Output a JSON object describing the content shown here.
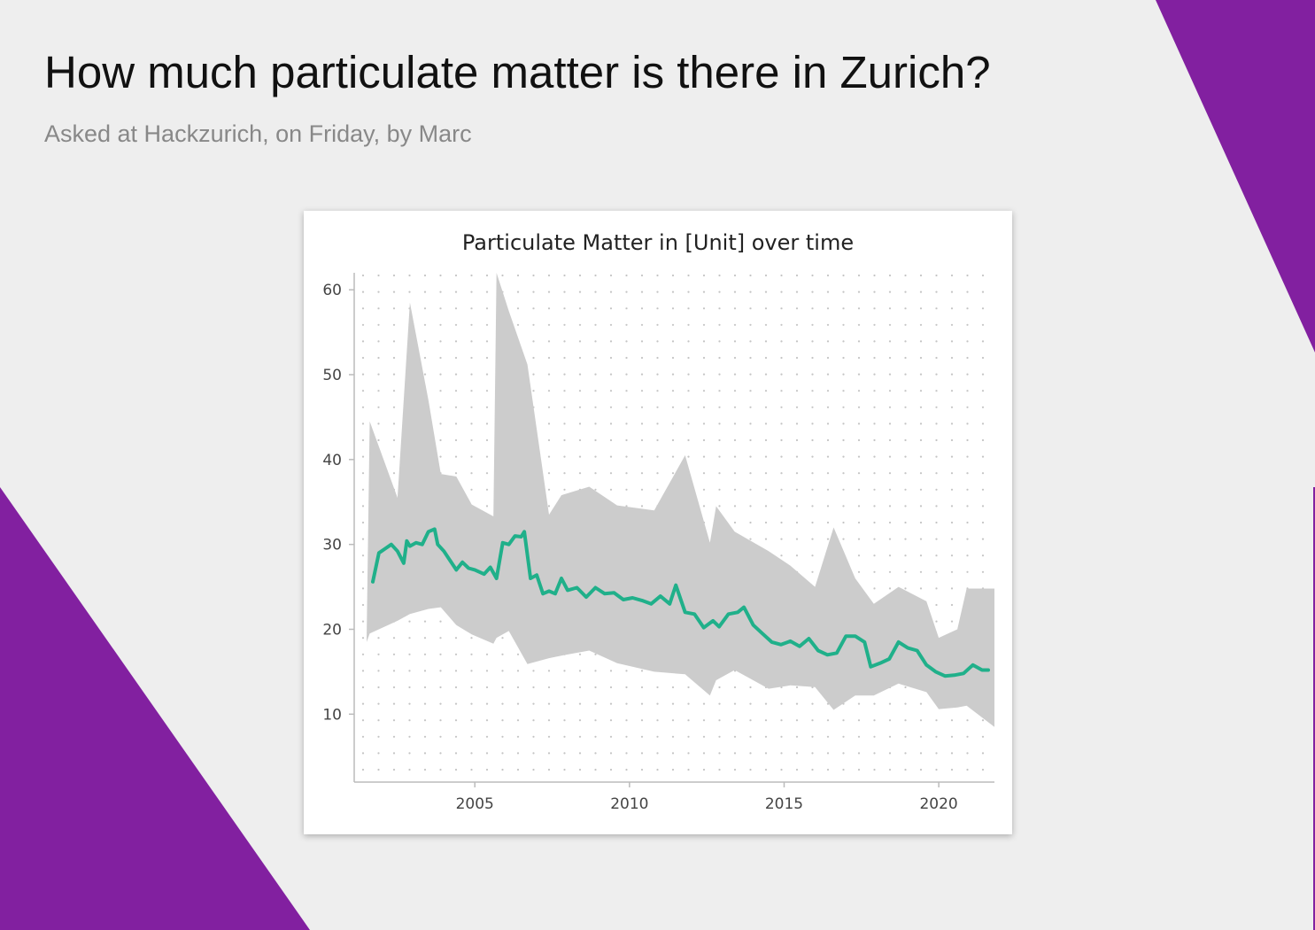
{
  "header": {
    "title": "How much particulate matter is there in Zurich?",
    "subtitle": "Asked at Hackzurich, on Friday, by Marc"
  },
  "colors": {
    "background": "#eeeeee",
    "accent": "#8220a0",
    "line": "#20b08a",
    "band": "#cccccc",
    "grid_dots": "#c4c4c4"
  },
  "chart_data": {
    "type": "line",
    "title": "Particulate Matter in [Unit] over time",
    "xlabel": "",
    "ylabel": "",
    "xlim": [
      2001.1,
      2021.8
    ],
    "ylim": [
      2,
      62
    ],
    "x_ticks": [
      2005,
      2010,
      2015,
      2020
    ],
    "y_ticks": [
      10,
      20,
      30,
      40,
      50,
      60
    ],
    "grid": "dotted",
    "legend": "none",
    "band": {
      "x": [
        2001.5,
        2001.6,
        2002.5,
        2002.9,
        2003.5,
        2003.9,
        2004.4,
        2004.9,
        2005.6,
        2005.7,
        2006.1,
        2006.7,
        2007.4,
        2007.8,
        2008.7,
        2009.6,
        2010.8,
        2011.8,
        2012.6,
        2012.8,
        2013.4,
        2014.5,
        2015.2,
        2016.0,
        2016.6,
        2017.3,
        2017.9,
        2018.7,
        2019.6,
        2020.0,
        2020.6,
        2020.9,
        2021.8
      ],
      "upper": [
        18.8,
        44.5,
        35.5,
        58.5,
        47.0,
        38.3,
        38.0,
        34.7,
        33.3,
        62.0,
        57.5,
        51.2,
        33.5,
        35.8,
        36.8,
        34.6,
        34.0,
        40.5,
        30.2,
        34.5,
        31.5,
        29.2,
        27.5,
        25.0,
        32.0,
        26.0,
        23.0,
        25.0,
        23.3,
        19.0,
        20.0,
        24.8,
        24.8
      ],
      "lower": [
        18.5,
        19.5,
        21.0,
        21.8,
        22.4,
        22.6,
        20.5,
        19.4,
        18.3,
        19.0,
        19.8,
        15.9,
        16.6,
        16.9,
        17.5,
        16.0,
        15.0,
        14.7,
        12.2,
        14.0,
        15.2,
        13.0,
        13.4,
        13.2,
        10.5,
        12.2,
        12.2,
        13.6,
        12.6,
        10.6,
        10.8,
        11.0,
        8.5
      ]
    },
    "series": [
      {
        "x": [
          2001.7,
          2001.9,
          2002.1,
          2002.3,
          2002.5,
          2002.7,
          2002.8,
          2002.9,
          2003.1,
          2003.3,
          2003.5,
          2003.7,
          2003.8,
          2004.0,
          2004.2,
          2004.4,
          2004.6,
          2004.8,
          2005.0,
          2005.3,
          2005.5,
          2005.7,
          2005.9,
          2006.1,
          2006.3,
          2006.5,
          2006.6,
          2006.8,
          2007.0,
          2007.2,
          2007.4,
          2007.6,
          2007.8,
          2008.0,
          2008.3,
          2008.6,
          2008.9,
          2009.2,
          2009.5,
          2009.8,
          2010.1,
          2010.4,
          2010.7,
          2011.0,
          2011.3,
          2011.5,
          2011.8,
          2012.1,
          2012.4,
          2012.7,
          2012.9,
          2013.2,
          2013.5,
          2013.7,
          2014.0,
          2014.3,
          2014.6,
          2014.9,
          2015.2,
          2015.5,
          2015.8,
          2016.1,
          2016.4,
          2016.7,
          2017.0,
          2017.3,
          2017.6,
          2017.8,
          2018.1,
          2018.4,
          2018.7,
          2019.0,
          2019.3,
          2019.6,
          2019.9,
          2020.2,
          2020.5,
          2020.8,
          2021.1,
          2021.4,
          2021.6
        ],
        "values": [
          25.6,
          29.0,
          29.5,
          30.0,
          29.2,
          27.8,
          30.4,
          29.8,
          30.2,
          30.0,
          31.5,
          31.8,
          30.0,
          29.2,
          28.1,
          27.0,
          27.9,
          27.2,
          27.0,
          26.5,
          27.3,
          26.0,
          30.2,
          30.0,
          31.0,
          30.9,
          31.5,
          26.0,
          26.4,
          24.2,
          24.5,
          24.2,
          26.0,
          24.6,
          24.9,
          23.8,
          24.9,
          24.2,
          24.3,
          23.5,
          23.7,
          23.4,
          23.0,
          23.9,
          23.0,
          25.2,
          22.0,
          21.8,
          20.2,
          21.0,
          20.3,
          21.8,
          22.0,
          22.6,
          20.5,
          19.5,
          18.5,
          18.2,
          18.6,
          18.0,
          18.9,
          17.5,
          17.0,
          17.2,
          19.2,
          19.2,
          18.5,
          15.6,
          16.0,
          16.5,
          18.5,
          17.8,
          17.5,
          15.8,
          15.0,
          14.5,
          14.6,
          14.8,
          15.8,
          15.2,
          15.2
        ]
      }
    ]
  }
}
